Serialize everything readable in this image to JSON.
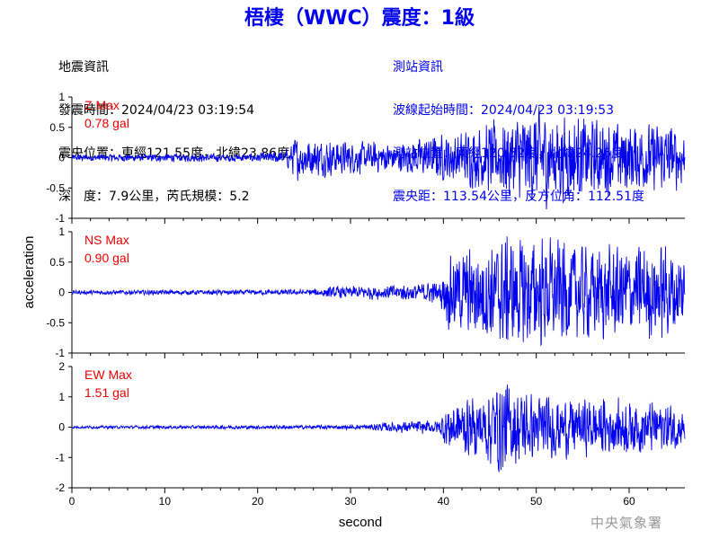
{
  "title": "梧棲（WWC）震度：1級",
  "quake_info": {
    "heading": "地震資訊",
    "origin_time": "發震時間：2024/04/23 03:19:54",
    "epicenter": "震央位置：東經121.55度，北緯23.86度",
    "depth_magnitude": "深　度：7.9公里，芮氏規模：5.2"
  },
  "station_info": {
    "heading": "測站資訊",
    "arrival_time": "波線起始時間：2024/04/23 03:19:53",
    "station_location": "測站位置：東經120.52度，北緯24.26度",
    "distance_azimuth": "震央距：113.54公里，反方位角：112.51度"
  },
  "credit": "中央氣象署",
  "colors": {
    "title": "#0000ee",
    "trace": "#0000ee",
    "max_label": "#ee0000",
    "axis": "#000000"
  },
  "chart_data": {
    "type": "line",
    "xlabel": "second",
    "ylabel": "acceleration",
    "xlim": [
      0,
      66
    ],
    "xticks": [
      "0",
      "10",
      "20",
      "30",
      "40",
      "50",
      "60"
    ],
    "grid": false,
    "panels": [
      {
        "name": "Z Max",
        "max_value": "0.78 gal",
        "ylim": [
          -1,
          1
        ],
        "yticks": [
          "1",
          "0.5",
          "0",
          "-0.5",
          "-1"
        ],
        "envelope": [
          [
            0,
            0.05
          ],
          [
            20,
            0.06
          ],
          [
            23,
            0.1
          ],
          [
            24,
            0.3
          ],
          [
            28,
            0.25
          ],
          [
            35,
            0.2
          ],
          [
            41,
            0.35
          ],
          [
            44,
            0.45
          ],
          [
            50,
            0.7
          ],
          [
            56,
            0.55
          ],
          [
            60,
            0.5
          ],
          [
            65,
            0.45
          ],
          [
            66,
            0.4
          ]
        ]
      },
      {
        "name": "NS Max",
        "max_value": "0.90 gal",
        "ylim": [
          -1,
          1
        ],
        "yticks": [
          "1",
          "0.5",
          "0",
          "-0.5",
          "-1"
        ],
        "envelope": [
          [
            0,
            0.03
          ],
          [
            25,
            0.04
          ],
          [
            28,
            0.08
          ],
          [
            36,
            0.12
          ],
          [
            39.5,
            0.15
          ],
          [
            40.5,
            0.5
          ],
          [
            44,
            0.7
          ],
          [
            48,
            0.8
          ],
          [
            52,
            0.75
          ],
          [
            57,
            0.65
          ],
          [
            62,
            0.7
          ],
          [
            66,
            0.6
          ]
        ]
      },
      {
        "name": "EW Max",
        "max_value": "1.51 gal",
        "ylim": [
          -2,
          2
        ],
        "yticks": [
          "2",
          "1",
          "0",
          "-1",
          "-2"
        ],
        "envelope": [
          [
            0,
            0.04
          ],
          [
            30,
            0.06
          ],
          [
            35,
            0.15
          ],
          [
            39.5,
            0.2
          ],
          [
            40.5,
            0.7
          ],
          [
            44,
            0.9
          ],
          [
            46,
            1.4
          ],
          [
            50,
            0.9
          ],
          [
            56,
            0.8
          ],
          [
            62,
            0.75
          ],
          [
            66,
            0.6
          ]
        ]
      }
    ]
  }
}
